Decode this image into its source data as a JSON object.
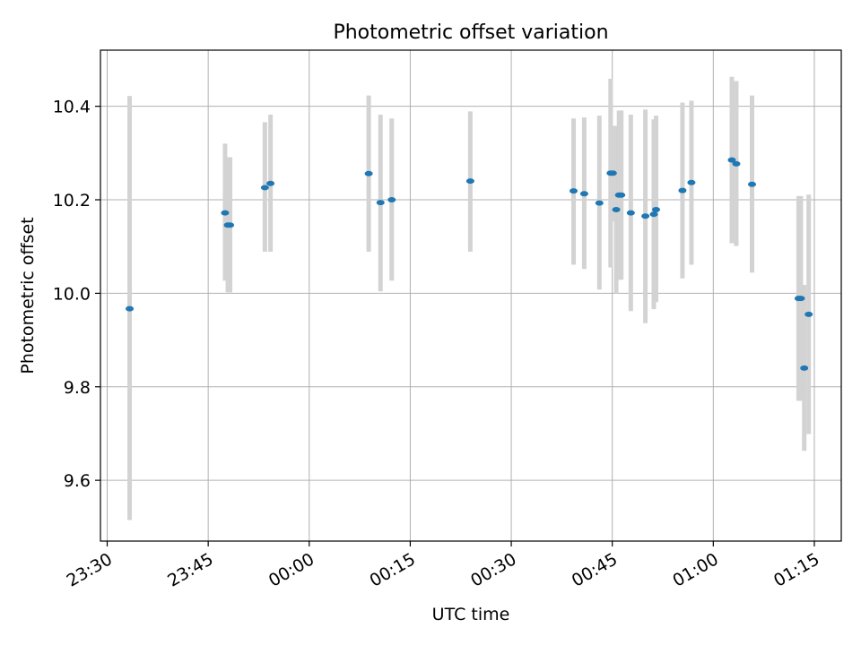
{
  "chart_data": {
    "type": "scatter",
    "title": "Photometric offset variation",
    "xlabel": "UTC time",
    "ylabel": "Photometric offset",
    "grid": true,
    "xlim": [
      "23:29",
      "01:19"
    ],
    "ylim": [
      9.47,
      10.52
    ],
    "xticks": [
      "23:30",
      "23:45",
      "00:00",
      "00:15",
      "00:30",
      "00:45",
      "01:00",
      "01:15"
    ],
    "yticks": [
      9.6,
      9.8,
      10.0,
      10.2,
      10.4
    ],
    "colors": {
      "points": "#1f77b4",
      "errorbars": "#d3d3d3"
    },
    "points": [
      {
        "time": "23:33:20",
        "y": 9.967,
        "lo": 9.515,
        "hi": 10.422
      },
      {
        "time": "23:47:30",
        "y": 10.172,
        "lo": 10.027,
        "hi": 10.32
      },
      {
        "time": "23:47:55",
        "y": 10.146,
        "lo": 10.002,
        "hi": 10.291
      },
      {
        "time": "23:48:15",
        "y": 10.146,
        "lo": 10.002,
        "hi": 10.291
      },
      {
        "time": "23:53:25",
        "y": 10.226,
        "lo": 10.089,
        "hi": 10.366
      },
      {
        "time": "23:54:15",
        "y": 10.235,
        "lo": 10.089,
        "hi": 10.382
      },
      {
        "time": "00:08:50",
        "y": 10.256,
        "lo": 10.089,
        "hi": 10.423
      },
      {
        "time": "00:10:35",
        "y": 10.194,
        "lo": 10.004,
        "hi": 10.382
      },
      {
        "time": "00:12:15",
        "y": 10.2,
        "lo": 10.027,
        "hi": 10.374
      },
      {
        "time": "00:23:55",
        "y": 10.24,
        "lo": 10.089,
        "hi": 10.389
      },
      {
        "time": "00:39:15",
        "y": 10.219,
        "lo": 10.061,
        "hi": 10.374
      },
      {
        "time": "00:40:50",
        "y": 10.213,
        "lo": 10.052,
        "hi": 10.376
      },
      {
        "time": "00:43:05",
        "y": 10.193,
        "lo": 10.008,
        "hi": 10.38
      },
      {
        "time": "00:44:45",
        "y": 10.257,
        "lo": 10.055,
        "hi": 10.459
      },
      {
        "time": "00:45:05",
        "y": 10.257,
        "lo": 10.154,
        "hi": 10.358
      },
      {
        "time": "00:45:35",
        "y": 10.179,
        "lo": 10.0,
        "hi": 10.358
      },
      {
        "time": "00:46:00",
        "y": 10.21,
        "lo": 10.029,
        "hi": 10.391
      },
      {
        "time": "00:46:20",
        "y": 10.21,
        "lo": 10.029,
        "hi": 10.391
      },
      {
        "time": "00:47:45",
        "y": 10.172,
        "lo": 9.962,
        "hi": 10.382
      },
      {
        "time": "00:49:55",
        "y": 10.165,
        "lo": 9.936,
        "hi": 10.393
      },
      {
        "time": "00:51:10",
        "y": 10.169,
        "lo": 9.966,
        "hi": 10.372
      },
      {
        "time": "00:51:30",
        "y": 10.179,
        "lo": 9.981,
        "hi": 10.38
      },
      {
        "time": "00:55:25",
        "y": 10.22,
        "lo": 10.032,
        "hi": 10.408
      },
      {
        "time": "00:56:45",
        "y": 10.237,
        "lo": 10.061,
        "hi": 10.412
      },
      {
        "time": "01:02:45",
        "y": 10.285,
        "lo": 10.107,
        "hi": 10.463
      },
      {
        "time": "01:03:25",
        "y": 10.277,
        "lo": 10.101,
        "hi": 10.454
      },
      {
        "time": "01:05:45",
        "y": 10.233,
        "lo": 10.044,
        "hi": 10.423
      },
      {
        "time": "01:12:40",
        "y": 9.989,
        "lo": 9.77,
        "hi": 10.208
      },
      {
        "time": "01:13:00",
        "y": 9.989,
        "lo": 9.77,
        "hi": 10.208
      },
      {
        "time": "01:13:30",
        "y": 9.84,
        "lo": 9.663,
        "hi": 10.018
      },
      {
        "time": "01:14:10",
        "y": 9.955,
        "lo": 9.699,
        "hi": 10.211
      }
    ]
  }
}
